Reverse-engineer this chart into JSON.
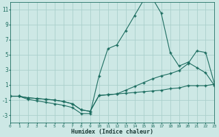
{
  "xlabel": "Humidex (Indice chaleur)",
  "bg_color": "#cde8e5",
  "grid_color": "#aacfcb",
  "line_color": "#1a6b5e",
  "xlim": [
    0,
    23
  ],
  "ylim": [
    -4,
    12
  ],
  "xticks": [
    0,
    1,
    2,
    3,
    4,
    5,
    6,
    7,
    8,
    9,
    10,
    11,
    12,
    13,
    14,
    15,
    16,
    17,
    18,
    19,
    20,
    21,
    22,
    23
  ],
  "yticks": [
    -3,
    -1,
    1,
    3,
    5,
    7,
    9,
    11
  ],
  "line1_x": [
    0,
    1,
    2,
    3,
    4,
    5,
    6,
    7,
    8,
    9,
    10,
    11,
    12,
    13,
    14,
    15,
    16,
    17,
    18,
    19,
    20,
    21,
    22,
    23
  ],
  "line1_y": [
    -0.5,
    -0.5,
    -0.9,
    -1.1,
    -1.3,
    -1.5,
    -1.7,
    -2.0,
    -2.8,
    -2.8,
    2.2,
    5.8,
    6.3,
    8.2,
    10.2,
    12.2,
    12.5,
    10.5,
    5.3,
    3.5,
    4.0,
    3.3,
    2.6,
    0.9
  ],
  "line2_x": [
    0,
    1,
    2,
    3,
    4,
    5,
    6,
    7,
    8,
    9,
    10,
    11,
    12,
    13,
    14,
    15,
    16,
    17,
    18,
    19,
    20,
    21,
    22,
    23
  ],
  "line2_y": [
    -0.5,
    -0.5,
    -0.7,
    -0.8,
    -0.9,
    -1.0,
    -1.2,
    -1.5,
    -2.3,
    -2.5,
    -0.4,
    -0.3,
    -0.2,
    0.3,
    0.8,
    1.3,
    1.8,
    2.2,
    2.5,
    2.9,
    3.8,
    5.5,
    5.3,
    1.1
  ],
  "line3_x": [
    0,
    1,
    2,
    3,
    4,
    5,
    6,
    7,
    8,
    9,
    10,
    11,
    12,
    13,
    14,
    15,
    16,
    17,
    18,
    19,
    20,
    21,
    22,
    23
  ],
  "line3_y": [
    -0.5,
    -0.5,
    -0.7,
    -0.8,
    -0.9,
    -1.0,
    -1.2,
    -1.5,
    -2.3,
    -2.5,
    -0.4,
    -0.3,
    -0.2,
    -0.1,
    0.0,
    0.1,
    0.2,
    0.3,
    0.5,
    0.6,
    0.9,
    0.9,
    0.9,
    1.1
  ]
}
